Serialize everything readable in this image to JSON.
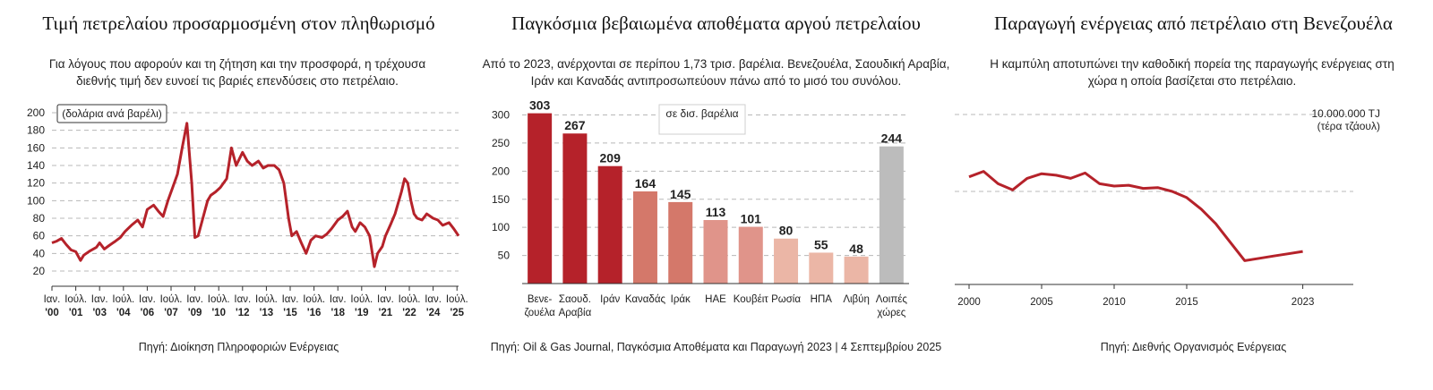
{
  "chart_data": [
    {
      "type": "line",
      "title": "Τιμή πετρελαίου προσαρμοσμένη στον πληθωρισμό",
      "subtitle": "Για λόγους που αφορούν και τη ζήτηση και την προσφορά, η τρέχουσα διεθνής τιμή δεν ευνοεί τις βαριές επενδύσεις στο πετρέλαιο.",
      "unit_label": "(δολάρια ανά βαρέλι)",
      "ylim": [
        20,
        200
      ],
      "yticks": [
        20,
        40,
        60,
        80,
        100,
        120,
        140,
        160,
        180,
        200
      ],
      "grid": true,
      "xlim": [
        2000.0,
        2025.6
      ],
      "xticks": [
        {
          "x": 2000.0,
          "l1": "Ιαν.",
          "l2": "'00"
        },
        {
          "x": 2001.5,
          "l1": "Ιούλ.",
          "l2": "'01"
        },
        {
          "x": 2003.0,
          "l1": "Ιαν.",
          "l2": "'03"
        },
        {
          "x": 2004.5,
          "l1": "Ιούλ.",
          "l2": "'04"
        },
        {
          "x": 2006.0,
          "l1": "Ιαν.",
          "l2": "'06"
        },
        {
          "x": 2007.5,
          "l1": "Ιούλ.",
          "l2": "'07"
        },
        {
          "x": 2009.0,
          "l1": "Ιαν.",
          "l2": "'09"
        },
        {
          "x": 2010.5,
          "l1": "Ιούλ.",
          "l2": "'10"
        },
        {
          "x": 2012.0,
          "l1": "Ιαν.",
          "l2": "'12"
        },
        {
          "x": 2013.5,
          "l1": "Ιούλ.",
          "l2": "'13"
        },
        {
          "x": 2015.0,
          "l1": "Ιαν.",
          "l2": "'15"
        },
        {
          "x": 2016.5,
          "l1": "Ιούλ.",
          "l2": "'16"
        },
        {
          "x": 2018.0,
          "l1": "Ιαν.",
          "l2": "'18"
        },
        {
          "x": 2019.5,
          "l1": "Ιούλ.",
          "l2": "'19"
        },
        {
          "x": 2021.0,
          "l1": "Ιαν.",
          "l2": "'21"
        },
        {
          "x": 2022.5,
          "l1": "Ιούλ.",
          "l2": "'22"
        },
        {
          "x": 2024.0,
          "l1": "Ιαν.",
          "l2": "'24"
        },
        {
          "x": 2025.5,
          "l1": "Ιούλ.",
          "l2": "'25"
        }
      ],
      "series": [
        {
          "color": "#b5222a",
          "x": [
            2000.0,
            2000.3,
            2000.6,
            2000.9,
            2001.2,
            2001.5,
            2001.8,
            2002.0,
            2002.4,
            2002.8,
            2003.0,
            2003.3,
            2003.6,
            2004.0,
            2004.3,
            2004.6,
            2005.0,
            2005.4,
            2005.7,
            2006.0,
            2006.4,
            2006.7,
            2007.0,
            2007.3,
            2007.6,
            2007.9,
            2008.2,
            2008.5,
            2008.8,
            2009.0,
            2009.2,
            2009.5,
            2009.8,
            2010.0,
            2010.3,
            2010.6,
            2011.0,
            2011.3,
            2011.6,
            2012.0,
            2012.3,
            2012.6,
            2013.0,
            2013.3,
            2013.6,
            2014.0,
            2014.3,
            2014.6,
            2014.9,
            2015.1,
            2015.4,
            2015.7,
            2016.0,
            2016.3,
            2016.6,
            2017.0,
            2017.3,
            2017.6,
            2018.0,
            2018.3,
            2018.6,
            2018.9,
            2019.1,
            2019.4,
            2019.7,
            2020.0,
            2020.3,
            2020.5,
            2020.8,
            2021.0,
            2021.3,
            2021.6,
            2022.0,
            2022.2,
            2022.4,
            2022.6,
            2022.8,
            2023.0,
            2023.3,
            2023.6,
            2024.0,
            2024.3,
            2024.6,
            2025.0,
            2025.3,
            2025.6
          ],
          "values": [
            52,
            54,
            57,
            50,
            44,
            42,
            32,
            38,
            43,
            47,
            52,
            45,
            49,
            54,
            58,
            65,
            72,
            78,
            70,
            90,
            95,
            88,
            82,
            100,
            115,
            130,
            160,
            188,
            120,
            58,
            60,
            80,
            100,
            106,
            110,
            115,
            125,
            160,
            140,
            155,
            145,
            140,
            145,
            137,
            140,
            140,
            135,
            120,
            80,
            60,
            65,
            52,
            40,
            55,
            60,
            58,
            62,
            68,
            78,
            82,
            88,
            70,
            65,
            75,
            70,
            60,
            25,
            40,
            48,
            60,
            72,
            85,
            110,
            125,
            120,
            100,
            85,
            80,
            78,
            85,
            80,
            78,
            72,
            75,
            68,
            60
          ]
        }
      ],
      "source": "Πηγή: Διοίκηση Πληροφοριών Ενέργειας"
    },
    {
      "type": "bar",
      "title": "Παγκόσμια βεβαιωμένα αποθέματα αργού πετρελαίου",
      "subtitle": "Από το 2023, ανέρχονται σε περίπου 1,73 τρισ. βαρέλια. Βενεζουέλα, Σαουδική Αραβία, Ιράν και Καναδάς αντιπροσωπεύουν πάνω από το μισό του συνόλου.",
      "unit_label": "σε δισ. βαρέλια",
      "ylim": [
        0,
        320
      ],
      "yticks": [
        50,
        100,
        150,
        200,
        250,
        300
      ],
      "grid": true,
      "categories": [
        [
          "Βενε-",
          "ζουέλα"
        ],
        [
          "Σαουδ.",
          "Αραβία"
        ],
        [
          "Ιράν"
        ],
        [
          "Καναδάς"
        ],
        [
          "Ιράκ"
        ],
        [
          "ΗΑΕ"
        ],
        [
          "Κουβέιτ"
        ],
        [
          "Ρωσία"
        ],
        [
          "ΗΠΑ"
        ],
        [
          "Λιβύη"
        ],
        [
          "Λοιπές",
          "χώρες"
        ]
      ],
      "values": [
        303,
        267,
        209,
        164,
        145,
        113,
        101,
        80,
        55,
        48,
        244
      ],
      "bar_colors": [
        "#b5222a",
        "#b5222a",
        "#b5222a",
        "#d4786a",
        "#d4786a",
        "#e0948a",
        "#e0948a",
        "#ebb6a6",
        "#ebb6a6",
        "#ebb6a6",
        "#bcbcbc"
      ],
      "source": "Πηγή: Oil & Gas Journal, Παγκόσμια Αποθέματα και Παραγωγή 2023 | 4 Σεπτεμβρίου 2025"
    },
    {
      "type": "line",
      "title": "Παραγωγή ενέργειας από πετρέλαιο στη Βενεζουέλα",
      "subtitle": "Η καμπύλη αποτυπώνει την καθοδική πορεία της παραγωγής ενέργειας στη χώρα η οποία βασίζεται στο πετρέλαιο.",
      "top_label_1": "10.000.000 TJ",
      "top_label_2": "(τέρα τζάουλ)",
      "ylim": [
        0,
        10000000
      ],
      "gridlines": [
        5000000,
        10000000
      ],
      "xlim": [
        1999,
        2026
      ],
      "xticks": [
        2000,
        2005,
        2010,
        2015,
        2023
      ],
      "series": [
        {
          "color": "#b5222a",
          "x": [
            2000,
            2001,
            2002,
            2003,
            2004,
            2005,
            2006,
            2007,
            2008,
            2009,
            2010,
            2011,
            2012,
            2013,
            2014,
            2015,
            2016,
            2017,
            2018,
            2019,
            2020,
            2021,
            2022,
            2023
          ],
          "values": [
            5950000,
            6300000,
            5500000,
            5100000,
            5850000,
            6150000,
            6050000,
            5850000,
            6200000,
            5500000,
            5350000,
            5400000,
            5200000,
            5250000,
            5000000,
            4600000,
            3850000,
            2900000,
            1700000,
            500000,
            650000,
            800000,
            950000,
            1100000
          ]
        }
      ],
      "source": "Πηγή: Διεθνής Οργανισμός Ενέργειας"
    }
  ]
}
